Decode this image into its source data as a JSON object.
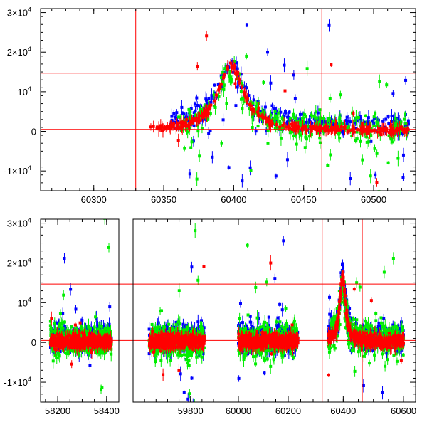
{
  "chart_data": [
    {
      "type": "scatter",
      "panel": "top",
      "xlim": [
        60262,
        60530
      ],
      "ylim": [
        -15000,
        31000
      ],
      "xticks": [
        60300,
        60350,
        60400,
        60450,
        60500
      ],
      "yticks": [
        {
          "value": -10000,
          "label": "-1×10",
          "exp": "4"
        },
        {
          "value": 0,
          "label": "0",
          "exp": ""
        },
        {
          "value": 10000,
          "label": "10",
          "exp": "4"
        },
        {
          "value": 20000,
          "label": "2×10",
          "exp": "4"
        },
        {
          "value": 30000,
          "label": "3×10",
          "exp": "4"
        }
      ],
      "hlines": [
        500,
        14700
      ],
      "vlines": [
        60330,
        60463
      ],
      "series": [
        {
          "color": "#0000ff",
          "segments": [
            [
              60355,
              60525
            ]
          ],
          "base": 1500,
          "spread": 3500,
          "outliers": 40,
          "peak": {
            "center": 60398,
            "amp": 15000,
            "width": 12
          }
        },
        {
          "color": "#00ee00",
          "segments": [
            [
              60360,
              60525
            ]
          ],
          "base": 500,
          "spread": 5000,
          "outliers": 45,
          "peak": {
            "center": 60398,
            "amp": 14000,
            "width": 12
          }
        },
        {
          "color": "#ff0000",
          "segments": [
            [
              60340,
              60525
            ]
          ],
          "base": 200,
          "spread": 1200,
          "outliers": 12,
          "peak": {
            "center": 60398,
            "amp": 16500,
            "width": 11
          }
        }
      ]
    },
    {
      "type": "scatter",
      "panel": "bottom",
      "xlim": [
        58130,
        60640
      ],
      "ylim": [
        -15000,
        31000
      ],
      "xticks": [
        58200,
        58400,
        59800,
        60000,
        60200,
        60400,
        60600
      ],
      "yticks": [
        {
          "value": -10000,
          "label": "-1×10",
          "exp": "4"
        },
        {
          "value": 0,
          "label": "0",
          "exp": ""
        },
        {
          "value": 10000,
          "label": "10",
          "exp": "4"
        },
        {
          "value": 20000,
          "label": "2×10",
          "exp": "4"
        },
        {
          "value": 30000,
          "label": "3×10",
          "exp": "4"
        }
      ],
      "hlines": [
        500,
        14700
      ],
      "vlines": [
        60330,
        60463
      ],
      "series": [
        {
          "color": "#0000ff",
          "segments": [
            [
              58170,
              58420
            ],
            [
              59620,
              59860
            ],
            [
              60000,
              60240
            ],
            [
              60350,
              60600
            ]
          ],
          "base": 1000,
          "spread": 4500,
          "outliers": 40,
          "peak": {
            "center": 60398,
            "amp": 15000,
            "width": 12
          }
        },
        {
          "color": "#00ee00",
          "segments": [
            [
              58170,
              58420
            ],
            [
              59620,
              59860
            ],
            [
              60000,
              60240
            ],
            [
              60350,
              60600
            ]
          ],
          "base": 500,
          "spread": 5500,
          "outliers": 50,
          "peak": {
            "center": 60398,
            "amp": 14000,
            "width": 12
          }
        },
        {
          "color": "#ff0000",
          "segments": [
            [
              58170,
              58420
            ],
            [
              59620,
              59860
            ],
            [
              60000,
              60240
            ],
            [
              60350,
              60600
            ]
          ],
          "base": 200,
          "spread": 2000,
          "outliers": 20,
          "peak": {
            "center": 60398,
            "amp": 16500,
            "width": 11
          }
        }
      ]
    }
  ]
}
